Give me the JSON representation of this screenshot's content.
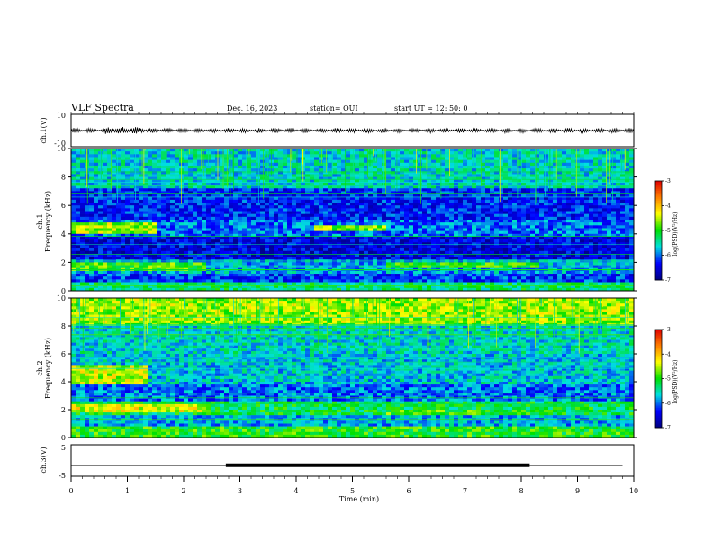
{
  "header": {
    "title": "VLF Spectra",
    "date": "Dec. 16, 2023",
    "station": "station= OUI",
    "start": "start  UT =   12: 50: 0"
  },
  "colorbar": {
    "label": "log(PSD)(V²/Hz)",
    "ticks": [
      "-3",
      "-4",
      "-5",
      "-6",
      "-7"
    ],
    "colors": [
      "#e00000",
      "#ff8000",
      "#ffff00",
      "#00e000",
      "#00e0e0",
      "#0000ff",
      "#000080"
    ]
  },
  "chart_data": [
    {
      "type": "line",
      "name": "ch1-waveform",
      "ylabel": "ch.1(V)",
      "ylim": [
        -10,
        10
      ],
      "yticks": [
        "10",
        "-10"
      ],
      "xlim": [
        0,
        10
      ],
      "approx_level": 0,
      "approx_amplitude": 1
    },
    {
      "type": "heatmap",
      "name": "ch1-spectrogram",
      "ylabel_channel": "ch.1",
      "ylabel": "Frequency (kHz)",
      "ylim": [
        0,
        10
      ],
      "yticks": [
        "0",
        "2",
        "4",
        "6",
        "8",
        "10"
      ],
      "xlim": [
        0,
        10
      ],
      "zlim": [
        -7,
        -3
      ],
      "bands": [
        {
          "f0": 0.0,
          "f1": 0.6,
          "level": -5.3
        },
        {
          "f0": 0.6,
          "f1": 1.2,
          "level": -6.2
        },
        {
          "f0": 1.2,
          "f1": 2.2,
          "level": -5.8
        },
        {
          "f0": 2.2,
          "f1": 3.8,
          "level": -6.5
        },
        {
          "f0": 3.8,
          "f1": 5.0,
          "level": -6.0
        },
        {
          "f0": 5.0,
          "f1": 7.2,
          "level": -6.3
        },
        {
          "f0": 7.2,
          "f1": 10.0,
          "level": -5.6
        }
      ],
      "events": [
        {
          "t0": 0.0,
          "t1": 1.5,
          "f0": 4.0,
          "f1": 4.8,
          "level": -4.6
        },
        {
          "t0": 4.3,
          "t1": 5.6,
          "f0": 4.2,
          "f1": 4.7,
          "level": -4.7
        },
        {
          "t0": 0.0,
          "t1": 2.4,
          "f0": 1.4,
          "f1": 2.0,
          "level": -4.9
        },
        {
          "t0": 5.6,
          "t1": 8.3,
          "f0": 1.6,
          "f1": 2.0,
          "level": -5.0
        }
      ]
    },
    {
      "type": "heatmap",
      "name": "ch2-spectrogram",
      "ylabel_channel": "ch.2",
      "ylabel": "Frequency (kHz)",
      "ylim": [
        0,
        10
      ],
      "yticks": [
        "0",
        "2",
        "4",
        "6",
        "8",
        "10"
      ],
      "xlim": [
        0,
        10
      ],
      "zlim": [
        -7,
        -3
      ],
      "bands": [
        {
          "f0": 0.0,
          "f1": 0.8,
          "level": -5.0
        },
        {
          "f0": 0.8,
          "f1": 1.6,
          "level": -5.8
        },
        {
          "f0": 1.6,
          "f1": 2.6,
          "level": -5.2
        },
        {
          "f0": 2.6,
          "f1": 3.8,
          "level": -6.0
        },
        {
          "f0": 3.8,
          "f1": 6.0,
          "level": -5.7
        },
        {
          "f0": 6.0,
          "f1": 8.0,
          "level": -5.6
        },
        {
          "f0": 8.0,
          "f1": 10.0,
          "level": -4.8
        }
      ],
      "events": [
        {
          "t0": 0.0,
          "t1": 1.4,
          "f0": 3.8,
          "f1": 5.2,
          "level": -4.5
        },
        {
          "t0": 0.0,
          "t1": 2.4,
          "f0": 1.8,
          "f1": 2.4,
          "level": -4.4
        },
        {
          "t0": 5.6,
          "t1": 8.3,
          "f0": 1.6,
          "f1": 2.0,
          "level": -4.9
        },
        {
          "t0": 0.0,
          "t1": 10.0,
          "f0": 8.2,
          "f1": 10.0,
          "level": -4.6
        }
      ]
    },
    {
      "type": "line",
      "name": "ch3-signal",
      "ylabel": "ch.3(V)",
      "ylim": [
        -5,
        5
      ],
      "yticks": [
        "5",
        "-5"
      ],
      "xlim": [
        0,
        10
      ],
      "xlabel": "Time  (min)",
      "xticks": [
        "0",
        "1",
        "2",
        "3",
        "4",
        "5",
        "6",
        "7",
        "8",
        "9",
        "10"
      ],
      "baseline": -1.5,
      "thick_segment": {
        "t0": 2.75,
        "t1": 8.15,
        "value": -1.5
      }
    }
  ]
}
